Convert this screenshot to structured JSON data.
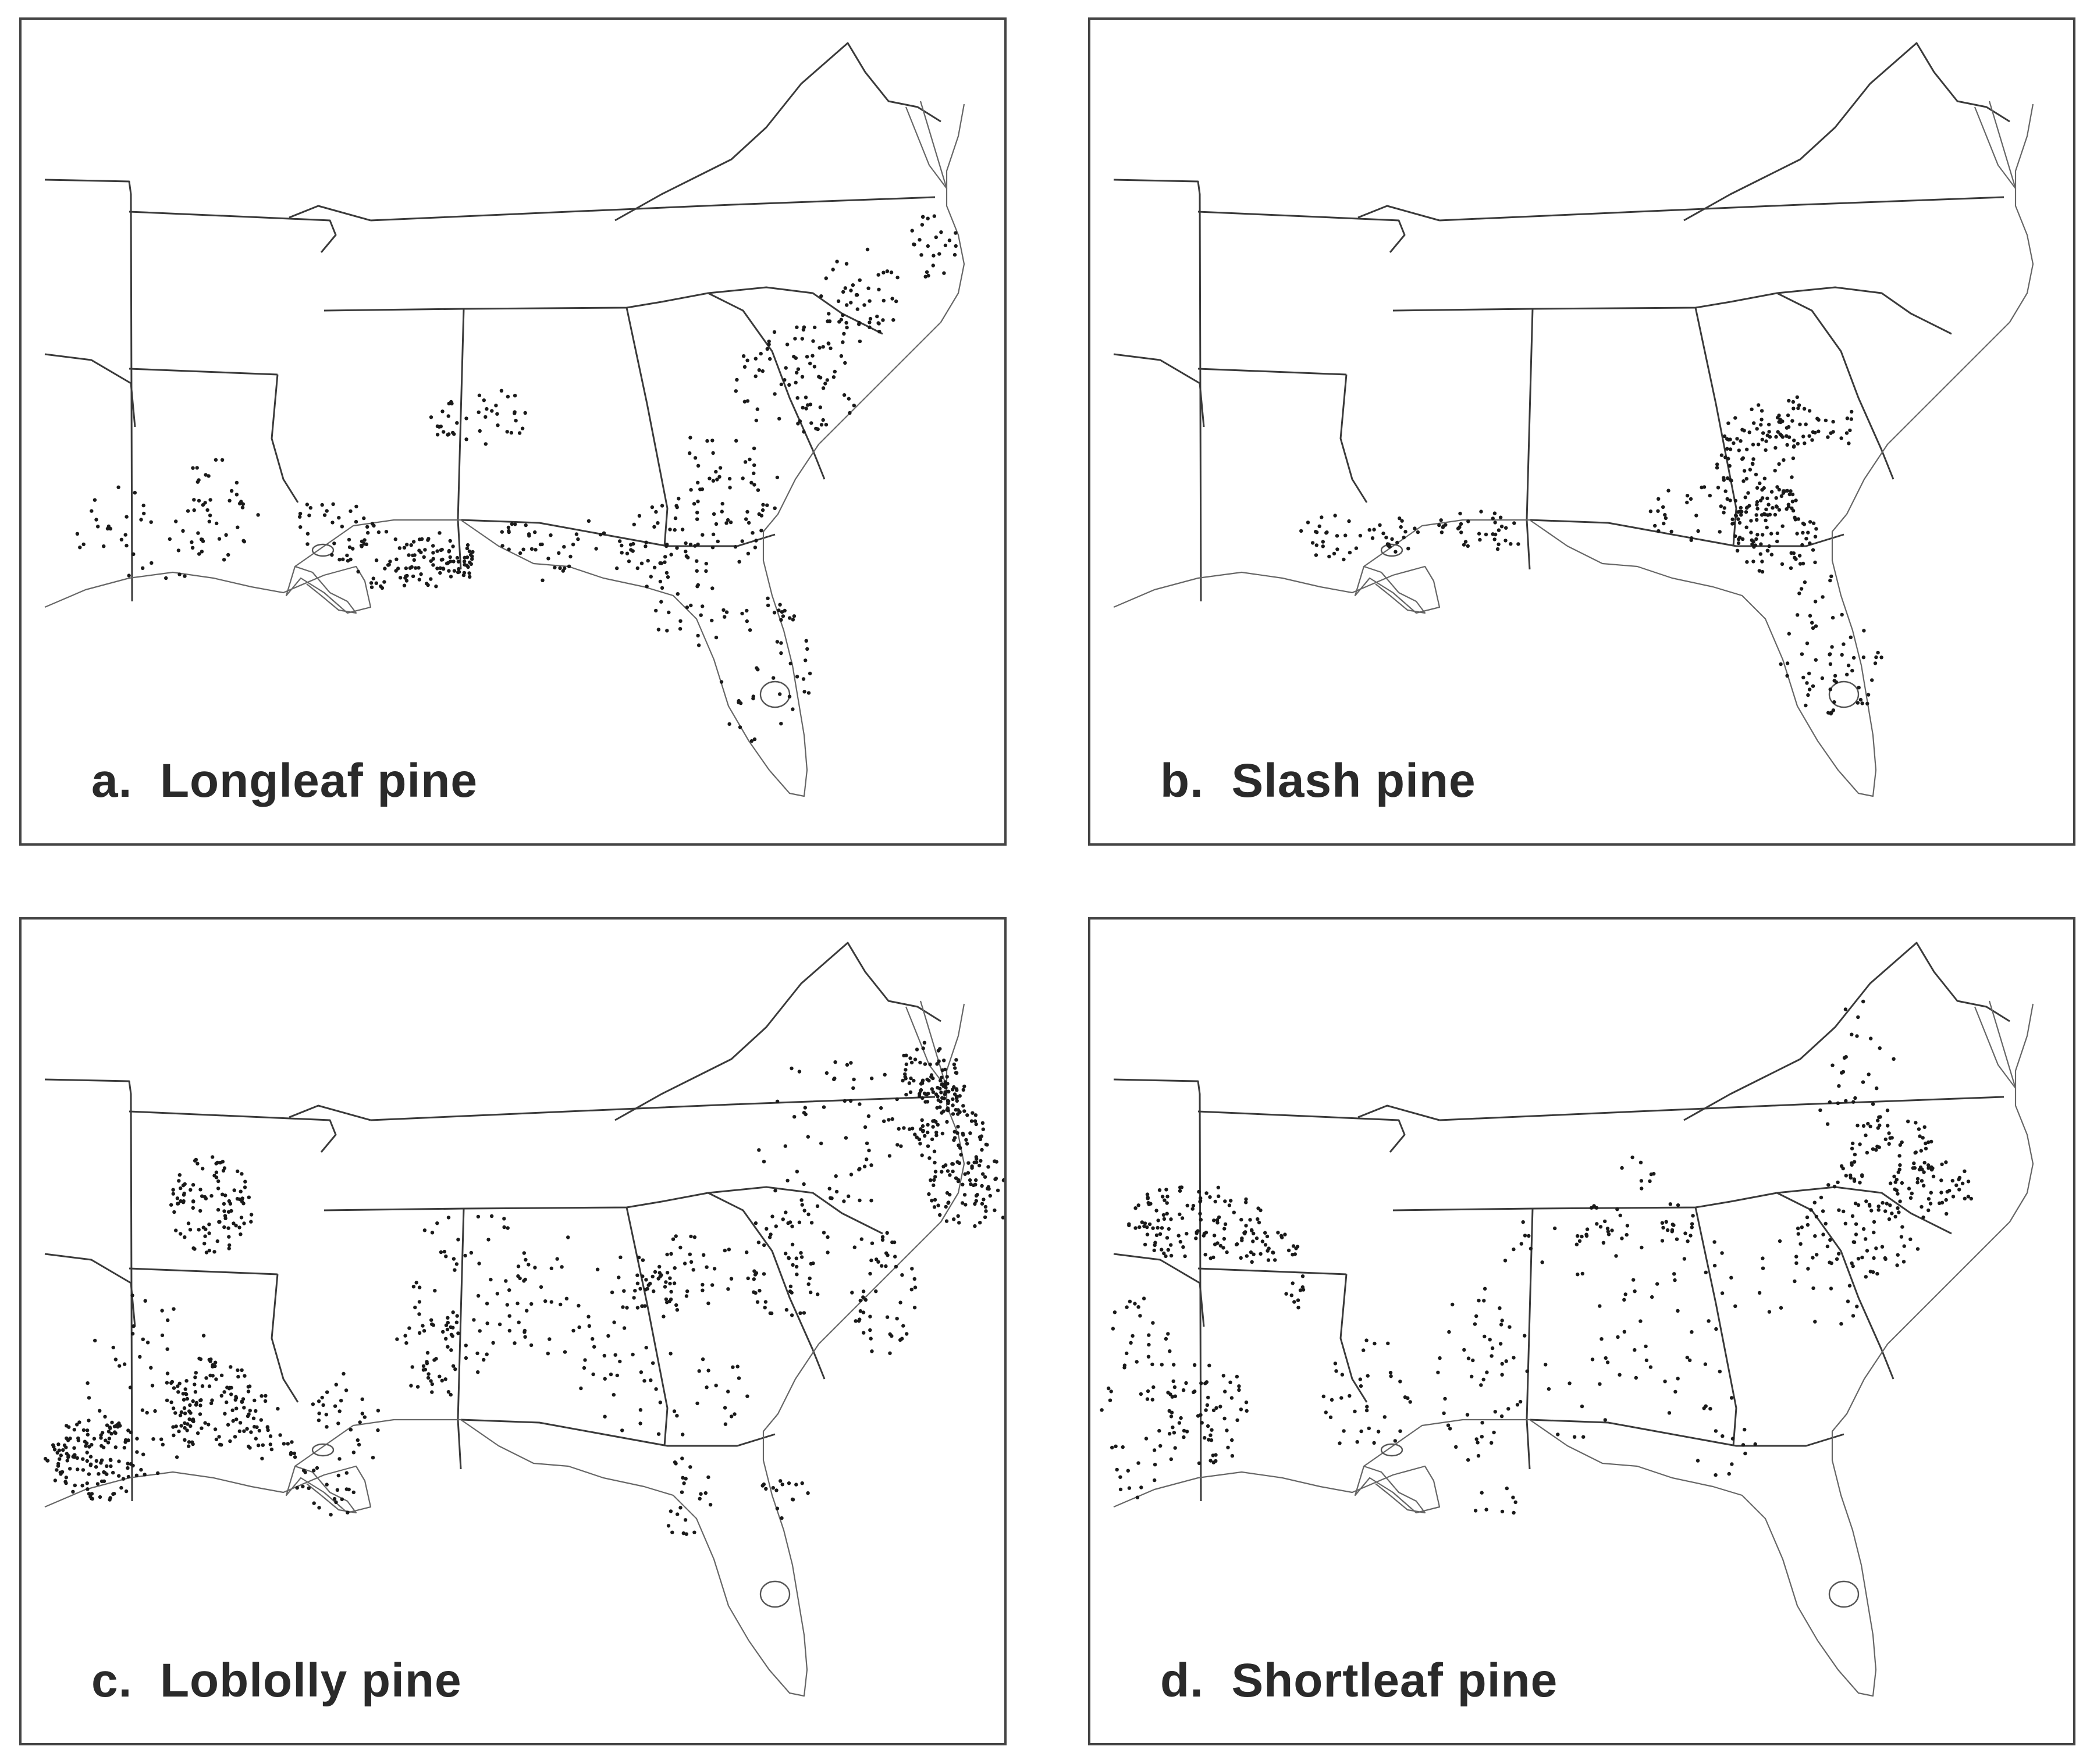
{
  "figure": {
    "panels": [
      {
        "id": "a",
        "letter": "a.",
        "label": "Longleaf pine",
        "clusters": [
          [
            215,
            885,
            120,
            90,
            40
          ],
          [
            340,
            840,
            70,
            95,
            35
          ],
          [
            660,
            930,
            120,
            55,
            55
          ],
          [
            790,
            685,
            90,
            55,
            40
          ],
          [
            710,
            930,
            85,
            40,
            60
          ],
          [
            880,
            915,
            90,
            55,
            30
          ],
          [
            1190,
            830,
            120,
            120,
            80
          ],
          [
            1050,
            900,
            120,
            50,
            30
          ],
          [
            1140,
            1000,
            75,
            90,
            35
          ],
          [
            1270,
            1120,
            90,
            130,
            45
          ],
          [
            1335,
            620,
            110,
            95,
            80
          ],
          [
            1440,
            470,
            70,
            85,
            50
          ],
          [
            1570,
            390,
            45,
            60,
            25
          ],
          [
            530,
            880,
            80,
            60,
            30
          ]
        ]
      },
      {
        "id": "b",
        "letter": "b.",
        "label": "Slash pine",
        "clusters": [
          [
            1145,
            780,
            70,
            120,
            120
          ],
          [
            1175,
            880,
            75,
            75,
            70
          ],
          [
            1215,
            690,
            40,
            45,
            30
          ],
          [
            1040,
            850,
            80,
            50,
            30
          ],
          [
            1240,
            1050,
            65,
            170,
            45
          ],
          [
            1325,
            1110,
            40,
            70,
            20
          ],
          [
            420,
            890,
            65,
            40,
            25
          ],
          [
            520,
            885,
            45,
            30,
            20
          ],
          [
            670,
            880,
            85,
            40,
            35
          ],
          [
            1285,
            700,
            35,
            35,
            12
          ]
        ]
      },
      {
        "id": "c",
        "letter": "c.",
        "label": "Loblolly pine",
        "clusters": [
          [
            125,
            930,
            85,
            75,
            110
          ],
          [
            325,
            830,
            85,
            80,
            110
          ],
          [
            325,
            490,
            75,
            85,
            100
          ],
          [
            220,
            800,
            110,
            170,
            50
          ],
          [
            90,
            940,
            40,
            55,
            25
          ],
          [
            420,
            870,
            40,
            60,
            25
          ],
          [
            540,
            900,
            85,
            125,
            55
          ],
          [
            720,
            745,
            80,
            75,
            50
          ],
          [
            770,
            620,
            120,
            130,
            50
          ],
          [
            960,
            660,
            140,
            120,
            50
          ],
          [
            1160,
            600,
            70,
            65,
            30
          ],
          [
            1080,
            650,
            55,
            45,
            30
          ],
          [
            1320,
            580,
            80,
            110,
            60
          ],
          [
            1475,
            640,
            65,
            110,
            50
          ],
          [
            1640,
            470,
            90,
            60,
            90
          ],
          [
            1600,
            380,
            60,
            60,
            50
          ],
          [
            1560,
            300,
            65,
            90,
            80
          ],
          [
            1395,
            370,
            140,
            140,
            60
          ],
          [
            1100,
            810,
            160,
            80,
            40
          ],
          [
            1140,
            990,
            60,
            70,
            22
          ],
          [
            1310,
            980,
            45,
            50,
            15
          ],
          [
            1575,
            300,
            35,
            35,
            45
          ]
        ]
      },
      {
        "id": "d",
        "letter": "d.",
        "label": "Shortleaf pine",
        "clusters": [
          [
            180,
            520,
            120,
            65,
            110
          ],
          [
            300,
            560,
            60,
            40,
            35
          ],
          [
            85,
            820,
            75,
            180,
            55
          ],
          [
            200,
            850,
            75,
            90,
            60
          ],
          [
            355,
            640,
            25,
            30,
            10
          ],
          [
            470,
            820,
            80,
            110,
            35
          ],
          [
            655,
            780,
            60,
            160,
            35
          ],
          [
            800,
            700,
            150,
            200,
            45
          ],
          [
            1000,
            680,
            130,
            170,
            40
          ],
          [
            1240,
            600,
            110,
            120,
            40
          ],
          [
            1340,
            520,
            110,
            90,
            55
          ],
          [
            1370,
            420,
            80,
            100,
            30
          ],
          [
            1450,
            460,
            70,
            50,
            45
          ],
          [
            1320,
            280,
            70,
            140,
            35
          ],
          [
            1390,
            380,
            60,
            70,
            30
          ],
          [
            880,
            520,
            60,
            40,
            20
          ],
          [
            1020,
            520,
            45,
            40,
            15
          ],
          [
            1090,
            900,
            55,
            80,
            15
          ],
          [
            700,
            1010,
            40,
            35,
            8
          ],
          [
            940,
            440,
            30,
            40,
            8
          ]
        ]
      }
    ]
  }
}
